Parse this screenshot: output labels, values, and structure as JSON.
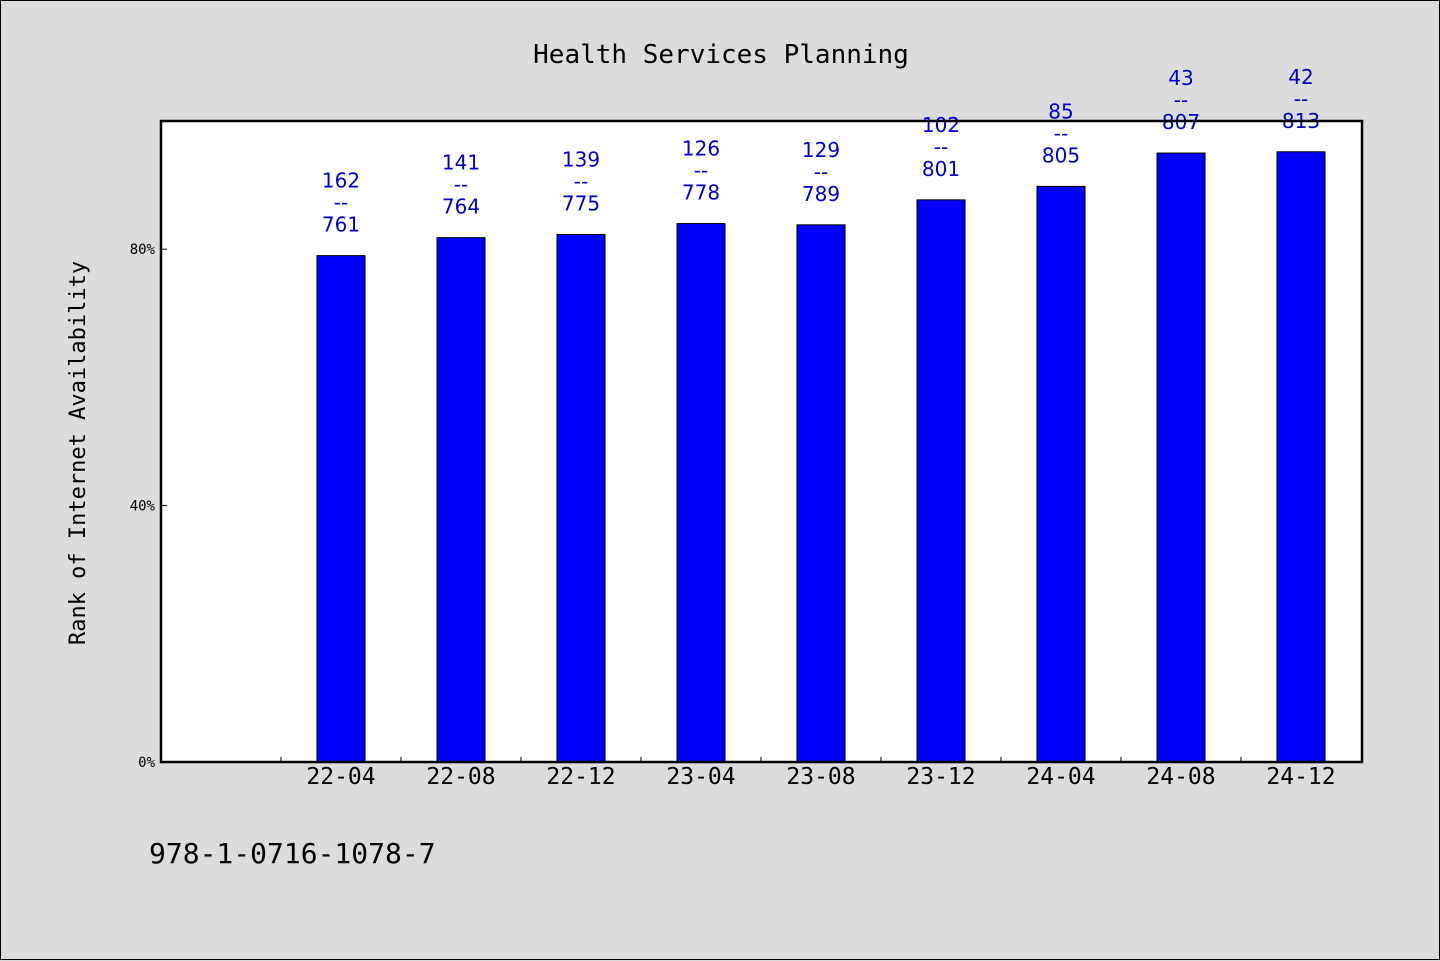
{
  "chart_data": {
    "type": "bar",
    "title": "Health Services Planning",
    "xlabel": "",
    "ylabel": "Rank of Internet Availability",
    "categories": [
      "22-04",
      "22-08",
      "22-12",
      "23-04",
      "23-08",
      "23-12",
      "24-04",
      "24-08",
      "24-12"
    ],
    "series": [
      {
        "values": [
          79.0,
          81.8,
          82.3,
          84.0,
          83.8,
          87.7,
          89.8,
          95.0,
          95.2
        ]
      }
    ],
    "data_labels": [
      {
        "top": "162",
        "sep": "--",
        "bottom": "761"
      },
      {
        "top": "141",
        "sep": "--",
        "bottom": "764"
      },
      {
        "top": "139",
        "sep": "--",
        "bottom": "775"
      },
      {
        "top": "126",
        "sep": "--",
        "bottom": "778"
      },
      {
        "top": "129",
        "sep": "--",
        "bottom": "789"
      },
      {
        "top": "102",
        "sep": "--",
        "bottom": "801"
      },
      {
        "top": "85",
        "sep": "--",
        "bottom": "805"
      },
      {
        "top": "43",
        "sep": "--",
        "bottom": "807"
      },
      {
        "top": "42",
        "sep": "--",
        "bottom": "813"
      }
    ],
    "ylim": [
      0,
      100
    ],
    "yticks": [
      {
        "value": 0,
        "label": "0%"
      },
      {
        "value": 40,
        "label": "40%"
      },
      {
        "value": 80,
        "label": "80%"
      }
    ],
    "grid": false,
    "colors": {
      "bar": "#0000ff",
      "label": "#0000cc",
      "background": "#dcdcdc",
      "plot_background": "#ffffff"
    }
  },
  "footnote": "978-1-0716-1078-7"
}
